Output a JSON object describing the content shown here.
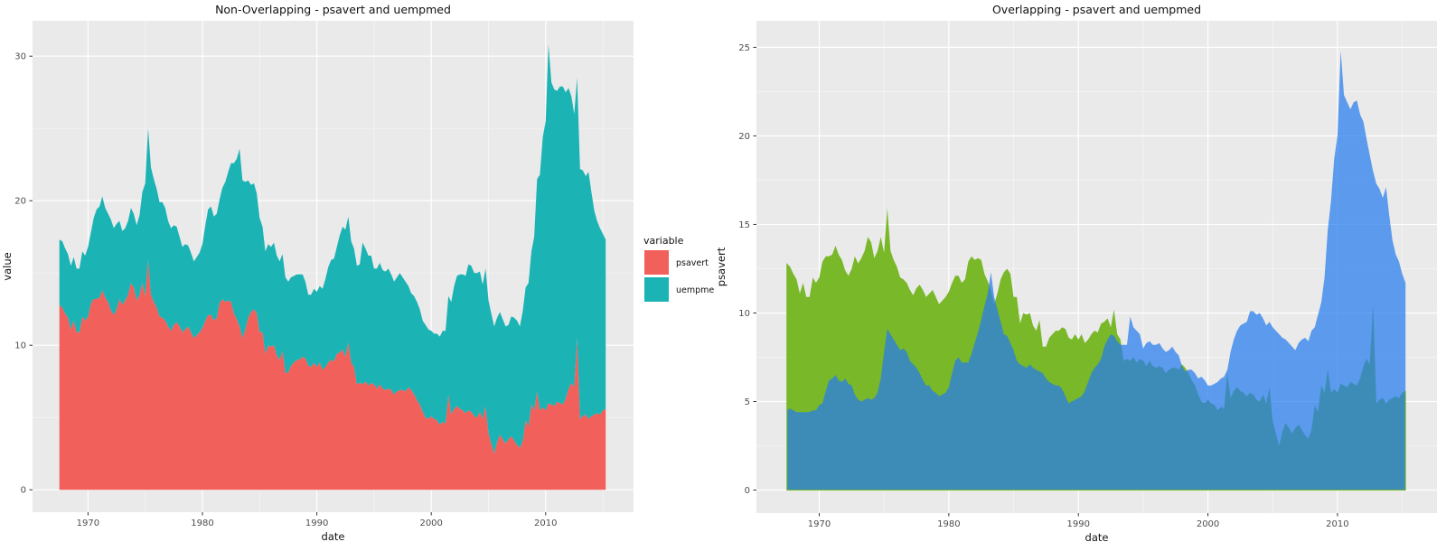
{
  "figure": {
    "background": "#ffffff",
    "theme": {
      "panel_bg": "#EAEAEA",
      "grid_major": "#FFFFFF",
      "grid_minor": "#FFFFFF",
      "tick_color": "#333333",
      "tick_label_color": "#4D4D4D",
      "axis_title_color": "#111111",
      "title_color": "#111111"
    }
  },
  "chart_data": {
    "type": "area",
    "x_domain": {
      "label": "date",
      "start_year": 1967.5,
      "step_years": 0.25,
      "count": 192
    },
    "psavert": [
      12.8,
      12.6,
      12.2,
      11.9,
      11.1,
      11.7,
      10.9,
      10.9,
      12.0,
      11.7,
      12.0,
      12.9,
      13.2,
      13.2,
      13.3,
      13.8,
      13.3,
      13.0,
      12.4,
      12.1,
      12.5,
      13.2,
      12.8,
      13.1,
      13.5,
      14.3,
      14.0,
      13.1,
      13.5,
      14.3,
      13.4,
      15.9,
      13.5,
      13.0,
      12.6,
      12.0,
      11.9,
      11.7,
      11.3,
      11.0,
      11.4,
      11.6,
      11.3,
      10.9,
      11.1,
      11.3,
      10.9,
      10.5,
      10.7,
      10.9,
      11.2,
      11.7,
      12.1,
      12.1,
      11.7,
      11.9,
      12.9,
      13.2,
      13.0,
      13.1,
      13.0,
      12.2,
      11.8,
      11.3,
      10.5,
      11.1,
      11.9,
      12.3,
      12.5,
      12.2,
      10.9,
      10.9,
      9.4,
      10.0,
      9.9,
      10.0,
      9.3,
      9.0,
      9.6,
      8.1,
      8.1,
      8.6,
      8.8,
      9.0,
      9.0,
      9.2,
      9.1,
      8.6,
      8.5,
      8.8,
      8.5,
      8.8,
      8.3,
      8.5,
      8.8,
      9.0,
      8.9,
      9.4,
      9.5,
      9.7,
      9.2,
      10.2,
      8.8,
      8.5,
      7.3,
      7.4,
      7.3,
      7.5,
      7.2,
      7.4,
      7.3,
      7.0,
      7.3,
      7.0,
      6.9,
      7.0,
      6.9,
      6.6,
      6.8,
      6.9,
      6.9,
      6.8,
      7.1,
      6.9,
      6.6,
      6.2,
      5.9,
      5.4,
      5.0,
      4.9,
      5.1,
      4.9,
      4.8,
      4.5,
      4.7,
      4.6,
      6.6,
      5.2,
      5.6,
      5.8,
      5.6,
      5.5,
      5.3,
      5.5,
      5.4,
      5.1,
      5.0,
      5.4,
      4.9,
      5.8,
      3.9,
      3.2,
      2.5,
      3.3,
      3.8,
      3.5,
      3.2,
      3.5,
      3.7,
      3.4,
      3.1,
      2.9,
      3.4,
      4.8,
      4.4,
      5.9,
      5.5,
      6.8,
      5.5,
      5.7,
      5.5,
      6.0,
      5.9,
      5.8,
      6.1,
      6.0,
      5.9,
      6.3,
      7.0,
      7.4,
      7.1,
      10.5,
      4.9,
      5.1,
      5.2,
      4.9,
      5.1,
      5.2,
      5.3,
      5.2,
      5.5,
      5.6
    ],
    "uempmed": [
      4.5,
      4.6,
      4.5,
      4.4,
      4.4,
      4.4,
      4.4,
      4.4,
      4.5,
      4.5,
      4.8,
      4.9,
      5.6,
      6.2,
      6.3,
      6.5,
      6.2,
      6.1,
      6.3,
      6.0,
      5.9,
      5.4,
      5.1,
      5.0,
      5.1,
      5.2,
      5.1,
      5.2,
      5.5,
      6.3,
      7.8,
      9.1,
      8.8,
      8.5,
      8.2,
      7.9,
      8.0,
      7.8,
      7.3,
      7.1,
      6.9,
      6.6,
      6.2,
      5.9,
      5.9,
      5.6,
      5.5,
      5.3,
      5.4,
      5.5,
      5.8,
      6.6,
      7.3,
      7.5,
      7.2,
      7.2,
      7.2,
      7.7,
      8.3,
      8.9,
      9.6,
      10.4,
      11.1,
      12.3,
      10.9,
      10.2,
      9.5,
      8.8,
      8.7,
      8.3,
      7.9,
      7.3,
      7.1,
      7.0,
      6.9,
      7.1,
      6.9,
      6.8,
      6.7,
      6.6,
      6.3,
      6.1,
      6.0,
      5.9,
      5.9,
      5.7,
      5.3,
      4.9,
      5.0,
      5.1,
      5.2,
      5.3,
      5.6,
      6.1,
      6.6,
      6.9,
      7.1,
      7.4,
      8.1,
      8.5,
      8.8,
      8.7,
      8.4,
      8.2,
      8.2,
      8.2,
      9.8,
      9.2,
      9.0,
      8.8,
      8.0,
      8.3,
      8.4,
      8.2,
      8.2,
      8.3,
      8.0,
      7.8,
      7.9,
      8.1,
      7.8,
      7.6,
      7.0,
      6.7,
      6.8,
      6.8,
      6.6,
      6.3,
      6.4,
      6.2,
      5.9,
      5.9,
      6.0,
      6.1,
      6.3,
      6.4,
      6.8,
      7.8,
      8.5,
      9.0,
      9.3,
      9.4,
      9.5,
      10.1,
      10.1,
      9.9,
      10.0,
      9.7,
      9.3,
      9.5,
      9.2,
      9.0,
      8.8,
      8.6,
      8.5,
      8.3,
      8.1,
      7.9,
      8.3,
      8.5,
      8.6,
      8.4,
      9.0,
      9.2,
      9.9,
      10.6,
      12.0,
      14.7,
      16.3,
      18.7,
      20.0,
      24.8,
      22.3,
      21.9,
      21.5,
      21.9,
      22.0,
      21.2,
      20.8,
      19.8,
      18.9,
      18.0,
      17.3,
      17.0,
      16.5,
      17.1,
      15.5,
      14.1,
      13.3,
      12.9,
      12.2,
      11.7
    ],
    "charts": [
      {
        "id": "non-overlapping",
        "stacking": "stacked",
        "title": "Non-Overlapping - psavert and uempmed",
        "xlabel": "date",
        "ylabel": "value",
        "xlim": [
          1965.15,
          2017.68
        ],
        "ylim": [
          -1.55,
          32.45
        ],
        "x_ticks": [
          1970,
          1980,
          1990,
          2000,
          2010
        ],
        "x_minor": [
          1975,
          1985,
          1995,
          2005,
          2015
        ],
        "y_ticks": [
          0,
          10,
          20,
          30
        ],
        "y_minor": [
          5,
          15,
          25
        ],
        "grid": true,
        "series": [
          {
            "name": "psavert",
            "data": "psavert",
            "fill": "#F2605C",
            "opacity": 1
          },
          {
            "name": "uempmed",
            "data": "uempmed",
            "fill": "#1CB3B5",
            "opacity": 1
          }
        ],
        "legend": {
          "title": "variable",
          "position": "right",
          "entries": [
            {
              "label": "psavert",
              "color": "#F2605C"
            },
            {
              "label": "uempmed",
              "color": "#1CB3B5"
            }
          ]
        }
      },
      {
        "id": "overlapping",
        "stacking": "overlap",
        "title": "Overlapping - psavert and uempmed",
        "xlabel": "date",
        "ylabel": "psavert",
        "xlim": [
          1965.15,
          2017.68
        ],
        "ylim": [
          -1.3,
          26.5
        ],
        "x_ticks": [
          1970,
          1980,
          1990,
          2000,
          2010
        ],
        "x_minor": [
          1975,
          1985,
          1995,
          2005,
          2015
        ],
        "y_ticks": [
          0,
          5,
          10,
          15,
          20,
          25
        ],
        "y_minor": [
          2.5,
          7.5,
          12.5,
          17.5,
          22.5
        ],
        "grid": true,
        "series": [
          {
            "name": "psavert",
            "data": "psavert",
            "fill": "#79B829",
            "opacity": 1,
            "edge": "#79B829"
          },
          {
            "name": "uempmed",
            "data": "uempmed",
            "fill": "#247CEF",
            "opacity": 0.72
          }
        ],
        "legend": null
      }
    ]
  }
}
